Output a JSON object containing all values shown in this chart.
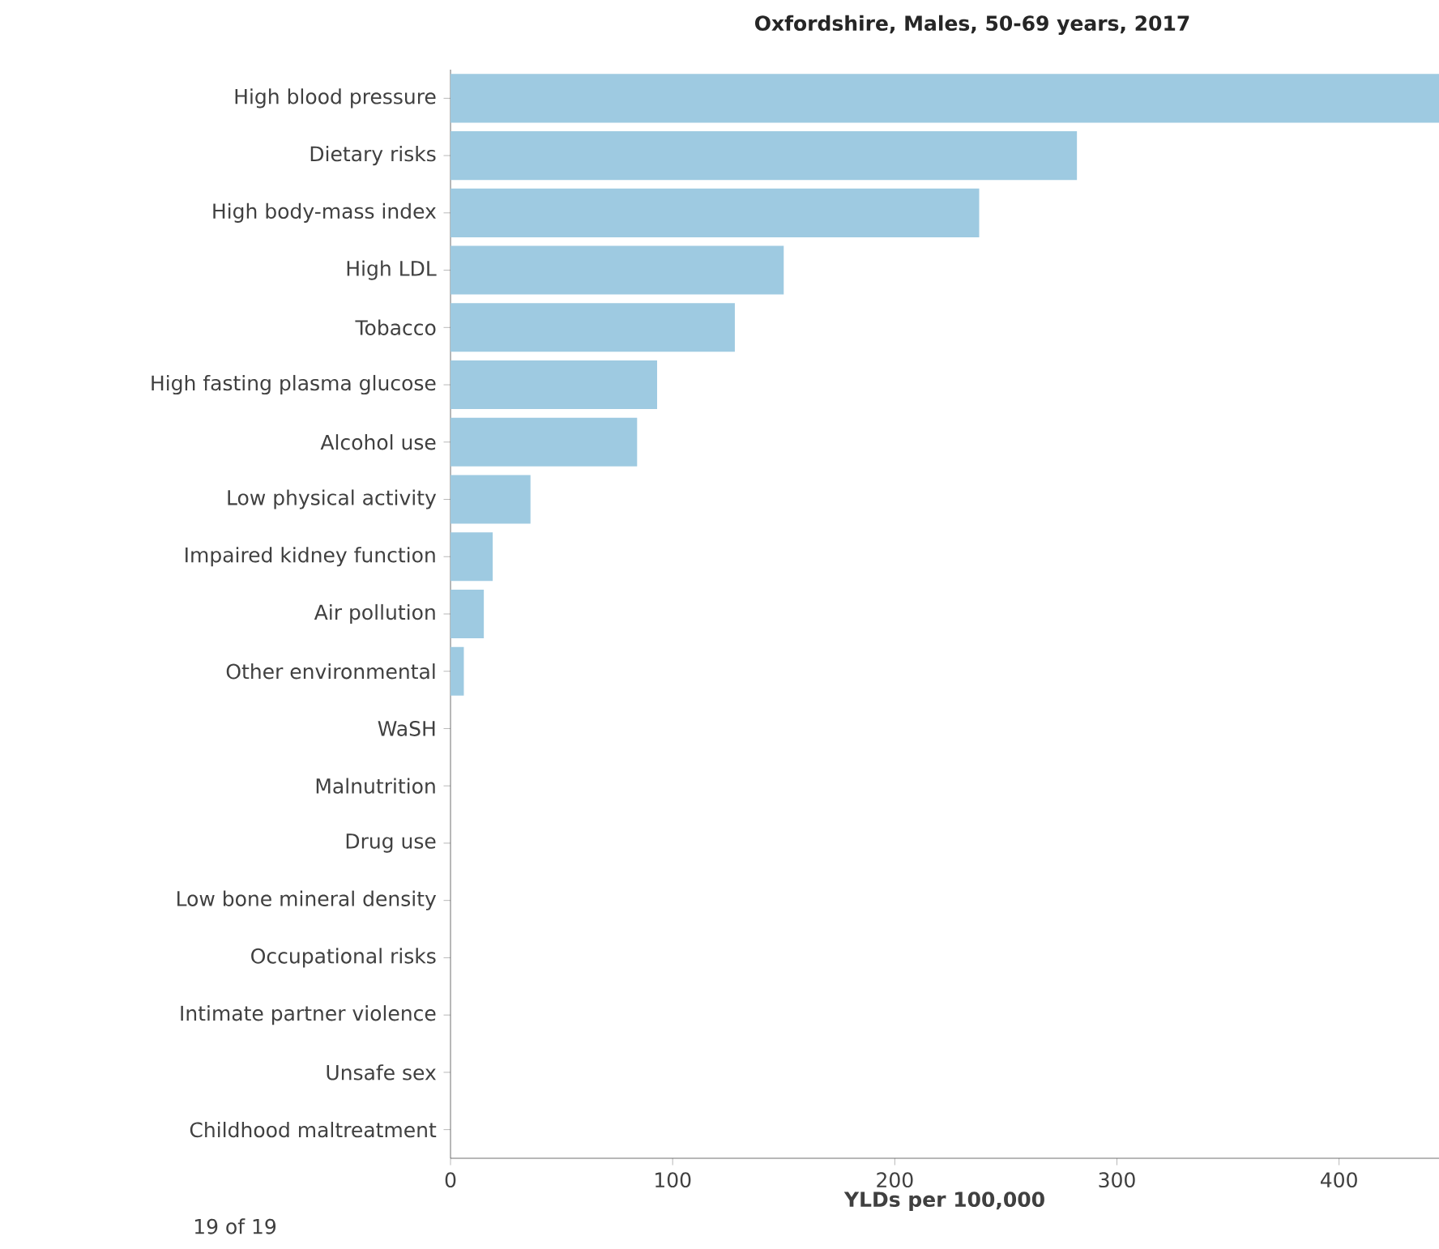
{
  "chart_data": {
    "type": "bar",
    "orientation": "horizontal",
    "title": "Oxfordshire, Males, 50-69 years, 2017",
    "xlabel": "YLDs per 100,000",
    "categories": [
      "High blood pressure",
      "Dietary risks",
      "High body-mass index",
      "High LDL",
      "Tobacco",
      "High fasting plasma glucose",
      "Alcohol use",
      "Low physical activity",
      "Impaired kidney function",
      "Air pollution",
      "Other environmental",
      "WaSH",
      "Malnutrition",
      "Drug use",
      "Low bone mineral density",
      "Occupational risks",
      "Intimate partner violence",
      "Unsafe sex",
      "Childhood maltreatment"
    ],
    "values": [
      445,
      282,
      238,
      150,
      128,
      93,
      84,
      36,
      19,
      15,
      6,
      0,
      0,
      0,
      0,
      0,
      0,
      0,
      0
    ],
    "color": "#9ecae1",
    "xlim": [
      0,
      445
    ],
    "xticks": [
      0,
      100,
      200,
      300,
      400
    ],
    "annotations": [
      "19 of 19"
    ]
  }
}
